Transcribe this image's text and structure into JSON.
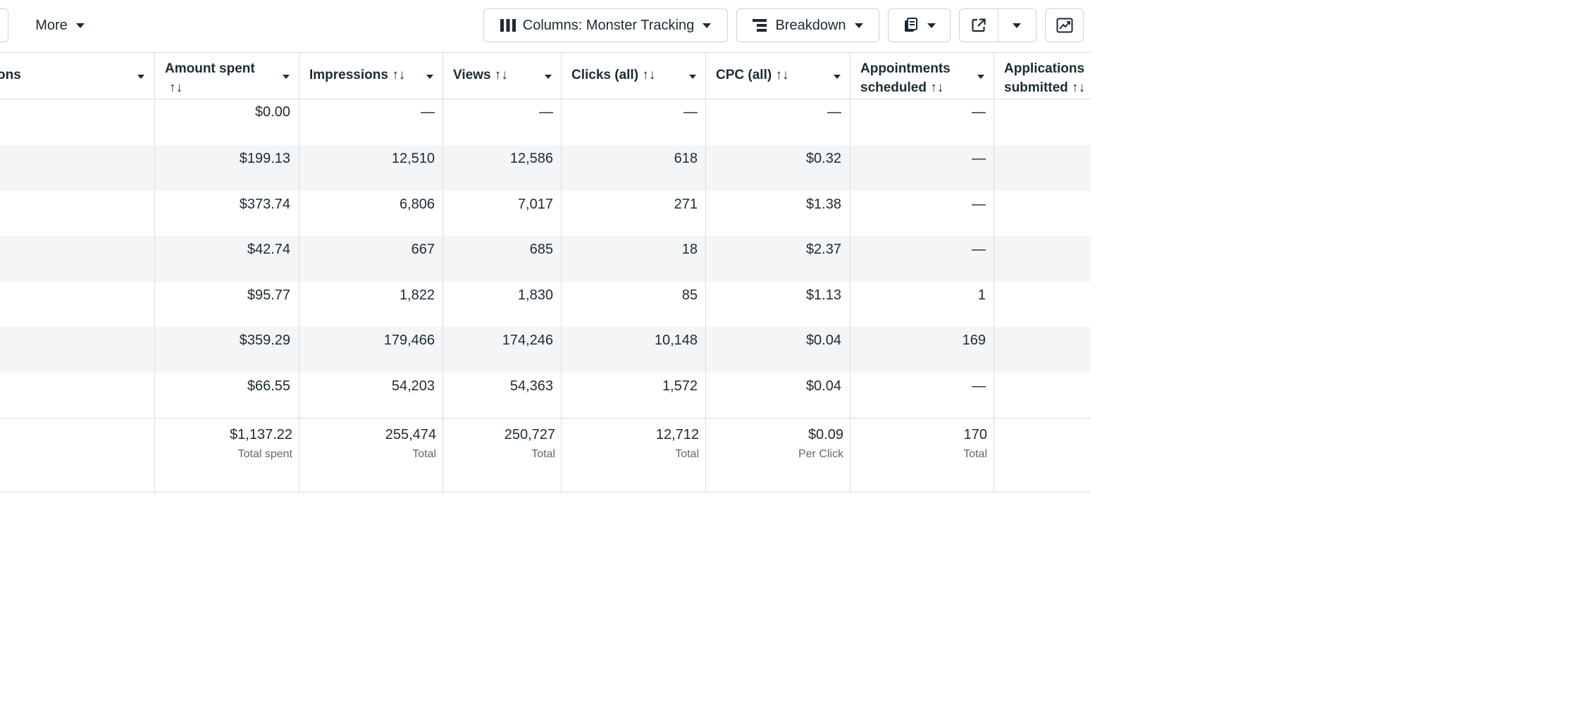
{
  "toolbar": {
    "more_label": "More",
    "columns_label": "Columns: Monster Tracking",
    "breakdown_label": "Breakdown"
  },
  "headers": {
    "name_fragment": "ons",
    "amount_spent": {
      "line1": "Amount spent",
      "line2": "↑↓"
    },
    "impressions": "Impressions ↑↓",
    "views": "Views ↑↓",
    "clicks": "Clicks (all) ↑↓",
    "cpc": "CPC (all) ↑↓",
    "appointments": {
      "line1": "Appointments",
      "line2": "scheduled ↑↓"
    },
    "applications": {
      "line1": "Applications",
      "line2": "submitted ↑↓"
    }
  },
  "rows": [
    {
      "amount": "$0.00",
      "impressions": "—",
      "views": "—",
      "clicks": "—",
      "cpc": "—",
      "appointments": "—"
    },
    {
      "amount": "$199.13",
      "impressions": "12,510",
      "views": "12,586",
      "clicks": "618",
      "cpc": "$0.32",
      "appointments": "—"
    },
    {
      "amount": "$373.74",
      "impressions": "6,806",
      "views": "7,017",
      "clicks": "271",
      "cpc": "$1.38",
      "appointments": "—"
    },
    {
      "amount": "$42.74",
      "impressions": "667",
      "views": "685",
      "clicks": "18",
      "cpc": "$2.37",
      "appointments": "—"
    },
    {
      "amount": "$95.77",
      "impressions": "1,822",
      "views": "1,830",
      "clicks": "85",
      "cpc": "$1.13",
      "appointments": "1"
    },
    {
      "amount": "$359.29",
      "impressions": "179,466",
      "views": "174,246",
      "clicks": "10,148",
      "cpc": "$0.04",
      "appointments": "169"
    },
    {
      "amount": "$66.55",
      "impressions": "54,203",
      "views": "54,363",
      "clicks": "1,572",
      "cpc": "$0.04",
      "appointments": "—"
    }
  ],
  "totals": {
    "amount": {
      "value": "$1,137.22",
      "label": "Total spent"
    },
    "impressions": {
      "value": "255,474",
      "label": "Total"
    },
    "views": {
      "value": "250,727",
      "label": "Total"
    },
    "clicks": {
      "value": "12,712",
      "label": "Total"
    },
    "cpc": {
      "value": "$0.09",
      "label": "Per Click"
    },
    "appointments": {
      "value": "170",
      "label": "Total"
    }
  },
  "icons": {
    "columns": "columns-icon",
    "breakdown": "breakdown-icon",
    "reports": "reports-icon",
    "export": "export-icon",
    "chart": "chart-icon"
  }
}
